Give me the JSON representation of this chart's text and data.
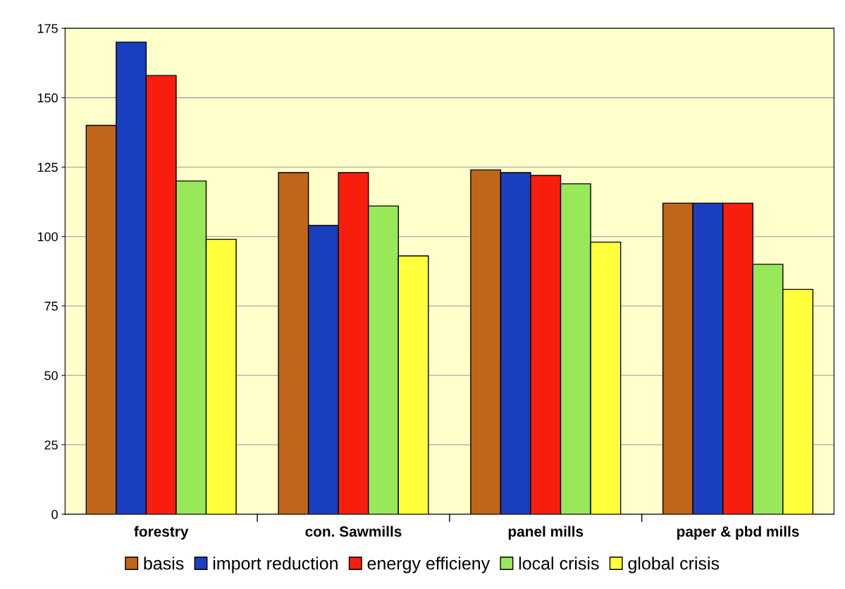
{
  "chart_data": {
    "type": "bar",
    "categories": [
      "forestry",
      "con. Sawmills",
      "panel mills",
      "paper & pbd mills"
    ],
    "series": [
      {
        "name": "basis",
        "color": "#c0661a",
        "values": [
          140,
          123,
          124,
          112
        ]
      },
      {
        "name": "import reduction",
        "color": "#1a3fbf",
        "values": [
          170,
          104,
          123,
          112
        ]
      },
      {
        "name": "energy efficieny",
        "color": "#f81e0e",
        "values": [
          158,
          123,
          122,
          112
        ]
      },
      {
        "name": "local crisis",
        "color": "#98e85a",
        "values": [
          120,
          111,
          119,
          90
        ]
      },
      {
        "name": "global crisis",
        "color": "#ffff3c",
        "values": [
          99,
          93,
          98,
          81
        ]
      }
    ],
    "ylim": [
      0,
      175
    ],
    "yticks": [
      0,
      25,
      50,
      75,
      100,
      125,
      150,
      175
    ],
    "grid": "y",
    "legend": "bottom"
  }
}
